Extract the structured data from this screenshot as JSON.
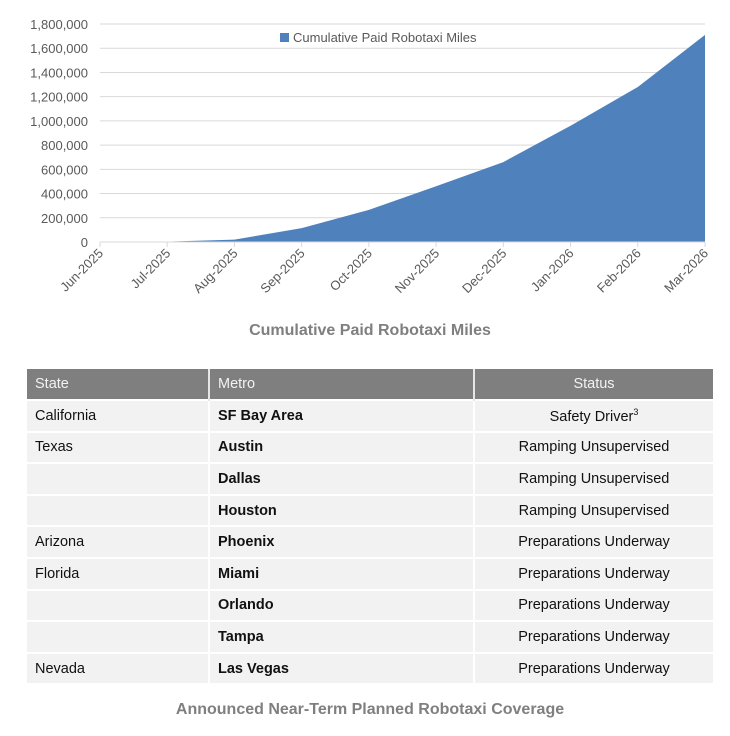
{
  "chart_data": {
    "type": "area",
    "title": "Cumulative Paid Robotaxi Miles",
    "xlabel": "",
    "ylabel": "",
    "ylim": [
      0,
      1800000
    ],
    "yticks": [
      "0",
      "200,000",
      "400,000",
      "600,000",
      "800,000",
      "1,000,000",
      "1,200,000",
      "1,400,000",
      "1,600,000",
      "1,800,000"
    ],
    "categories": [
      "Jun-2025",
      "Jul-2025",
      "Aug-2025",
      "Sep-2025",
      "Oct-2025",
      "Nov-2025",
      "Dec-2025",
      "Jan-2026",
      "Feb-2026",
      "Mar-2026"
    ],
    "series": [
      {
        "name": "Cumulative Paid Robotaxi Miles",
        "color": "#4f81bd",
        "values": [
          0,
          3000,
          20000,
          115000,
          265000,
          460000,
          660000,
          960000,
          1280000,
          1710000
        ]
      }
    ],
    "grid": true,
    "legend_position": "top-center"
  },
  "chart": {
    "legend_label": "Cumulative Paid Robotaxi Miles",
    "caption": "Cumulative Paid Robotaxi Miles"
  },
  "table": {
    "headers": {
      "state": "State",
      "metro": "Metro",
      "status": "Status"
    },
    "rows": [
      {
        "state": "California",
        "metro": "SF Bay Area",
        "status": "Safety Driver",
        "footnote": "3"
      },
      {
        "state": "Texas",
        "metro": "Austin",
        "status": "Ramping Unsupervised"
      },
      {
        "state": "",
        "metro": "Dallas",
        "status": "Ramping Unsupervised"
      },
      {
        "state": "",
        "metro": "Houston",
        "status": "Ramping Unsupervised"
      },
      {
        "state": "Arizona",
        "metro": "Phoenix",
        "status": "Preparations Underway"
      },
      {
        "state": "Florida",
        "metro": "Miami",
        "status": "Preparations Underway"
      },
      {
        "state": "",
        "metro": "Orlando",
        "status": "Preparations Underway"
      },
      {
        "state": "",
        "metro": "Tampa",
        "status": "Preparations Underway"
      },
      {
        "state": "Nevada",
        "metro": "Las Vegas",
        "status": "Preparations Underway"
      }
    ],
    "caption": "Announced Near-Term Planned Robotaxi Coverage"
  }
}
